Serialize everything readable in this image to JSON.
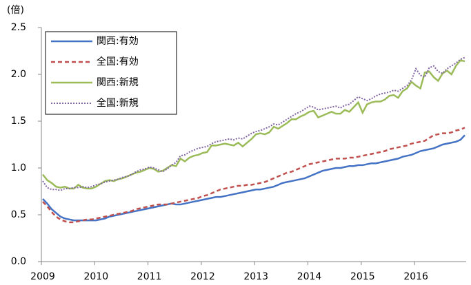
{
  "chart_data": {
    "type": "line",
    "y_label": "(倍)",
    "categories": [
      "2009",
      null,
      null,
      null,
      null,
      null,
      null,
      null,
      null,
      null,
      null,
      null,
      "2010",
      null,
      null,
      null,
      null,
      null,
      null,
      null,
      null,
      null,
      null,
      null,
      "2011",
      null,
      null,
      null,
      null,
      null,
      null,
      null,
      null,
      null,
      null,
      null,
      "2012",
      null,
      null,
      null,
      null,
      null,
      null,
      null,
      null,
      null,
      null,
      null,
      "2013",
      null,
      null,
      null,
      null,
      null,
      null,
      null,
      null,
      null,
      null,
      null,
      "2014",
      null,
      null,
      null,
      null,
      null,
      null,
      null,
      null,
      null,
      null,
      null,
      "2015",
      null,
      null,
      null,
      null,
      null,
      null,
      null,
      null,
      null,
      null,
      null,
      "2016",
      null,
      null,
      null,
      null,
      null,
      null,
      null,
      null,
      null,
      null,
      null
    ],
    "ylim": [
      0,
      2.5
    ],
    "yticks": [
      {
        "value": 0,
        "label": "0.0"
      },
      0.5,
      {
        "value": 1,
        "label": "1.0"
      },
      1.5,
      {
        "value": 2,
        "label": "2.0"
      },
      2.5
    ],
    "grid": false,
    "legend": "top-left",
    "series": [
      {
        "name": "関西:有効",
        "color": "#4472c4",
        "dash": "solid",
        "values": [
          0.67,
          0.62,
          0.56,
          0.52,
          0.48,
          0.46,
          0.45,
          0.44,
          0.44,
          0.44,
          0.44,
          0.44,
          0.44,
          0.45,
          0.46,
          0.48,
          0.49,
          0.5,
          0.51,
          0.52,
          0.53,
          0.54,
          0.55,
          0.56,
          0.57,
          0.58,
          0.59,
          0.6,
          0.61,
          0.62,
          0.61,
          0.61,
          0.62,
          0.63,
          0.64,
          0.65,
          0.66,
          0.67,
          0.68,
          0.69,
          0.69,
          0.7,
          0.71,
          0.72,
          0.73,
          0.74,
          0.75,
          0.76,
          0.77,
          0.77,
          0.78,
          0.79,
          0.8,
          0.82,
          0.84,
          0.85,
          0.86,
          0.87,
          0.88,
          0.89,
          0.91,
          0.93,
          0.95,
          0.97,
          0.98,
          0.99,
          1.0,
          1.0,
          1.01,
          1.02,
          1.02,
          1.03,
          1.03,
          1.04,
          1.05,
          1.05,
          1.06,
          1.07,
          1.08,
          1.09,
          1.1,
          1.12,
          1.13,
          1.14,
          1.16,
          1.18,
          1.19,
          1.2,
          1.21,
          1.23,
          1.25,
          1.26,
          1.27,
          1.28,
          1.3,
          1.35
        ]
      },
      {
        "name": "全国:有効",
        "color": "#c0504d",
        "dash": "dashed",
        "values": [
          0.64,
          0.59,
          0.53,
          0.48,
          0.45,
          0.43,
          0.42,
          0.42,
          0.43,
          0.44,
          0.45,
          0.45,
          0.46,
          0.47,
          0.48,
          0.49,
          0.5,
          0.51,
          0.52,
          0.53,
          0.54,
          0.56,
          0.57,
          0.58,
          0.59,
          0.6,
          0.61,
          0.61,
          0.61,
          0.62,
          0.63,
          0.64,
          0.65,
          0.66,
          0.67,
          0.68,
          0.7,
          0.71,
          0.73,
          0.75,
          0.77,
          0.78,
          0.79,
          0.8,
          0.81,
          0.81,
          0.82,
          0.82,
          0.83,
          0.84,
          0.85,
          0.87,
          0.89,
          0.91,
          0.93,
          0.95,
          0.96,
          0.98,
          1.0,
          1.02,
          1.04,
          1.05,
          1.06,
          1.07,
          1.08,
          1.09,
          1.1,
          1.1,
          1.1,
          1.11,
          1.11,
          1.12,
          1.13,
          1.14,
          1.15,
          1.16,
          1.17,
          1.18,
          1.2,
          1.21,
          1.22,
          1.23,
          1.24,
          1.26,
          1.27,
          1.28,
          1.29,
          1.32,
          1.35,
          1.36,
          1.37,
          1.37,
          1.38,
          1.4,
          1.41,
          1.43
        ]
      },
      {
        "name": "関西:新規",
        "color": "#9bbb59",
        "dash": "solid",
        "values": [
          0.93,
          0.87,
          0.84,
          0.8,
          0.79,
          0.8,
          0.78,
          0.78,
          0.82,
          0.79,
          0.78,
          0.78,
          0.8,
          0.83,
          0.86,
          0.87,
          0.86,
          0.88,
          0.89,
          0.91,
          0.93,
          0.95,
          0.96,
          0.98,
          1.0,
          0.99,
          0.96,
          0.97,
          1.0,
          1.03,
          1.02,
          1.1,
          1.07,
          1.11,
          1.13,
          1.14,
          1.16,
          1.17,
          1.24,
          1.24,
          1.25,
          1.26,
          1.25,
          1.24,
          1.27,
          1.23,
          1.27,
          1.31,
          1.36,
          1.37,
          1.36,
          1.38,
          1.44,
          1.42,
          1.45,
          1.48,
          1.52,
          1.52,
          1.55,
          1.57,
          1.6,
          1.61,
          1.54,
          1.56,
          1.58,
          1.6,
          1.58,
          1.58,
          1.62,
          1.6,
          1.65,
          1.7,
          1.59,
          1.68,
          1.7,
          1.71,
          1.71,
          1.73,
          1.77,
          1.78,
          1.75,
          1.82,
          1.85,
          1.92,
          1.88,
          1.85,
          2.02,
          2.03,
          1.97,
          1.93,
          2.01,
          2.04,
          2.0,
          2.09,
          2.15,
          2.14
        ]
      },
      {
        "name": "全国:新規",
        "color": "#8064a2",
        "dash": "dotted",
        "values": [
          0.86,
          0.79,
          0.77,
          0.77,
          0.76,
          0.78,
          0.78,
          0.79,
          0.79,
          0.8,
          0.79,
          0.8,
          0.82,
          0.83,
          0.85,
          0.86,
          0.87,
          0.88,
          0.9,
          0.91,
          0.93,
          0.96,
          0.98,
          0.99,
          1.01,
          1.0,
          0.98,
          0.96,
          0.99,
          1.03,
          1.06,
          1.13,
          1.14,
          1.17,
          1.19,
          1.21,
          1.22,
          1.23,
          1.26,
          1.28,
          1.29,
          1.3,
          1.31,
          1.3,
          1.32,
          1.31,
          1.34,
          1.37,
          1.39,
          1.4,
          1.42,
          1.44,
          1.47,
          1.46,
          1.49,
          1.52,
          1.55,
          1.58,
          1.6,
          1.63,
          1.66,
          1.65,
          1.62,
          1.63,
          1.64,
          1.65,
          1.66,
          1.64,
          1.67,
          1.68,
          1.72,
          1.76,
          1.74,
          1.72,
          1.74,
          1.77,
          1.79,
          1.8,
          1.81,
          1.83,
          1.82,
          1.85,
          1.88,
          1.94,
          2.06,
          1.99,
          1.97,
          2.07,
          2.09,
          2.03,
          2.01,
          2.06,
          2.09,
          2.12,
          2.16,
          2.18
        ]
      }
    ]
  }
}
